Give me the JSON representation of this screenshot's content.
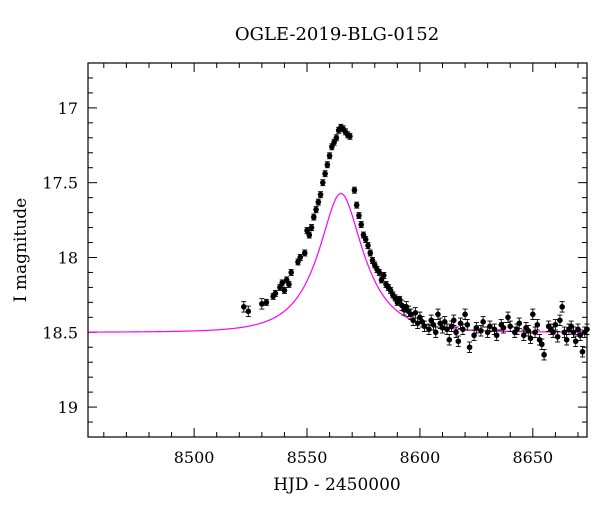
{
  "chart_data": {
    "type": "scatter",
    "title": "OGLE-2019-BLG-0152",
    "xlabel": "HJD - 2450000",
    "ylabel": "I magnitude",
    "xlim": [
      8453,
      8674
    ],
    "ylim": [
      19.2,
      16.7
    ],
    "y_inverted": true,
    "x_ticks": [
      8500,
      8550,
      8600,
      8650
    ],
    "y_ticks": [
      17,
      17.5,
      18,
      18.5,
      19
    ],
    "x_tick_labels": [
      "8500",
      "8550",
      "8600",
      "8650"
    ],
    "y_tick_labels": [
      "17",
      "17.5",
      "18",
      "18.5",
      "19"
    ],
    "colors": {
      "model": "#ff00ff",
      "points": "#000000"
    },
    "model": {
      "name": "",
      "baseline_mag": 18.5,
      "peak_time": 8565,
      "peak_mag": 17.12,
      "einstein_time": 18,
      "peak_flux_multiplier": 2.35
    },
    "series": [
      {
        "name": "",
        "x": [
          8522,
          8524,
          8530,
          8532,
          8535,
          8536,
          8538,
          8539,
          8540,
          8541,
          8542,
          8543,
          8546,
          8547,
          8549,
          8550,
          8551,
          8552,
          8553,
          8554,
          8555,
          8556,
          8557,
          8558,
          8559,
          8560,
          8561,
          8562,
          8563,
          8564,
          8565,
          8566,
          8567,
          8568,
          8569,
          8571,
          8572,
          8573,
          8574,
          8575,
          8576,
          8577,
          8578,
          8579,
          8580,
          8581,
          8582,
          8583,
          8584,
          8585,
          8586,
          8587,
          8588,
          8589,
          8590,
          8591,
          8592,
          8593,
          8594,
          8595,
          8596,
          8597,
          8598,
          8599,
          8600,
          8601,
          8602,
          8604,
          8605,
          8606,
          8607,
          8608,
          8609,
          8610,
          8611,
          8612,
          8613,
          8614,
          8615,
          8616,
          8617,
          8618,
          8619,
          8620,
          8621,
          8622,
          8624,
          8625,
          8627,
          8628,
          8630,
          8631,
          8633,
          8634,
          8636,
          8637,
          8639,
          8640,
          8642,
          8643,
          8644,
          8646,
          8647,
          8648,
          8649,
          8650,
          8651,
          8652,
          8653,
          8654,
          8655,
          8657,
          8658,
          8659,
          8660,
          8661,
          8662,
          8663,
          8664,
          8665,
          8666,
          8667,
          8668,
          8669,
          8670,
          8671,
          8672,
          8673,
          8674
        ],
        "y": [
          18.33,
          18.36,
          18.31,
          18.3,
          18.26,
          18.24,
          18.2,
          18.17,
          18.22,
          18.15,
          18.18,
          18.1,
          18.03,
          18.0,
          17.97,
          17.82,
          17.85,
          17.8,
          17.73,
          17.68,
          17.63,
          17.58,
          17.5,
          17.44,
          17.38,
          17.32,
          17.26,
          17.23,
          17.2,
          17.15,
          17.13,
          17.14,
          17.16,
          17.18,
          17.19,
          17.55,
          17.65,
          17.72,
          17.78,
          17.85,
          17.88,
          17.92,
          17.97,
          18.02,
          18.05,
          18.08,
          18.1,
          18.15,
          18.12,
          18.18,
          18.2,
          18.22,
          18.25,
          18.27,
          18.3,
          18.28,
          18.32,
          18.35,
          18.33,
          18.36,
          18.38,
          18.42,
          18.37,
          18.44,
          18.4,
          18.43,
          18.46,
          18.48,
          18.42,
          18.45,
          18.5,
          18.38,
          18.44,
          18.47,
          18.43,
          18.48,
          18.55,
          18.46,
          18.42,
          18.5,
          18.56,
          18.44,
          18.48,
          18.38,
          18.45,
          18.6,
          18.52,
          18.47,
          18.49,
          18.43,
          18.5,
          18.46,
          18.48,
          18.52,
          18.45,
          18.47,
          18.4,
          18.46,
          18.5,
          18.48,
          18.44,
          18.52,
          18.47,
          18.49,
          18.54,
          18.38,
          18.5,
          18.45,
          18.55,
          18.58,
          18.65,
          18.46,
          18.48,
          18.5,
          18.45,
          18.53,
          18.42,
          18.33,
          18.5,
          18.55,
          18.48,
          18.46,
          18.5,
          18.56,
          18.48,
          18.52,
          18.63,
          18.5,
          18.48
        ]
      }
    ]
  }
}
